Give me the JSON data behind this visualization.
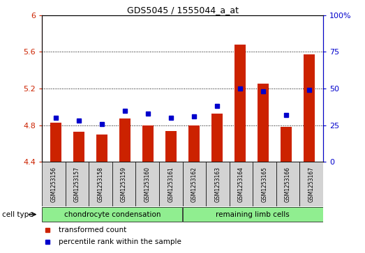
{
  "title": "GDS5045 / 1555044_a_at",
  "samples": [
    "GSM1253156",
    "GSM1253157",
    "GSM1253158",
    "GSM1253159",
    "GSM1253160",
    "GSM1253161",
    "GSM1253162",
    "GSM1253163",
    "GSM1253164",
    "GSM1253165",
    "GSM1253166",
    "GSM1253167"
  ],
  "transformed_count": [
    4.83,
    4.73,
    4.7,
    4.87,
    4.8,
    4.74,
    4.8,
    4.93,
    5.68,
    5.25,
    4.78,
    5.57
  ],
  "percentile_rank": [
    30,
    28,
    26,
    35,
    33,
    30,
    31,
    38,
    50,
    48,
    32,
    49
  ],
  "ylim_left": [
    4.4,
    6.0
  ],
  "ylim_right": [
    0,
    100
  ],
  "yticks_left": [
    4.4,
    4.8,
    5.2,
    5.6,
    6.0
  ],
  "ytick_labels_left": [
    "4.4",
    "4.8",
    "5.2",
    "5.6",
    "6"
  ],
  "yticks_right": [
    0,
    25,
    50,
    75,
    100
  ],
  "ytick_labels_right": [
    "0",
    "25",
    "50",
    "75",
    "100%"
  ],
  "groups": [
    {
      "label": "chondrocyte condensation",
      "start": 0,
      "end": 6
    },
    {
      "label": "remaining limb cells",
      "start": 6,
      "end": 12
    }
  ],
  "group_color": "#90ee90",
  "sample_box_color": "#d3d3d3",
  "bar_color": "#cc2200",
  "dot_color": "#0000cc",
  "bar_width": 0.5,
  "cell_type_label": "cell type",
  "legend_items": [
    {
      "label": "transformed count",
      "color": "#cc2200"
    },
    {
      "label": "percentile rank within the sample",
      "color": "#0000cc"
    }
  ],
  "tick_color_left": "#cc2200",
  "tick_color_right": "#0000cc",
  "title_fontsize": 9
}
